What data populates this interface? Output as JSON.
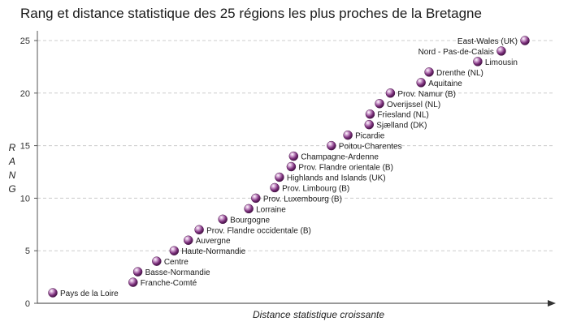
{
  "chart_data": {
    "type": "scatter",
    "title": "Rang et distance statistique des 25 régions les plus proches de la Bretagne",
    "xlabel": "Distance statistique croissante",
    "ylabel": "RANG",
    "ylim": [
      0,
      26
    ],
    "yticks": [
      0,
      5,
      10,
      15,
      20,
      25
    ],
    "grid": true,
    "marker_color": "#6b2a6b",
    "points": [
      {
        "rank": 1,
        "name": "Pays de la Loire",
        "x": 0.0
      },
      {
        "rank": 2,
        "name": "Franche-Comté",
        "x": 0.17
      },
      {
        "rank": 3,
        "name": "Basse-Normandie",
        "x": 0.18
      },
      {
        "rank": 4,
        "name": "Centre",
        "x": 0.22
      },
      {
        "rank": 5,
        "name": "Haute-Normandie",
        "x": 0.257
      },
      {
        "rank": 6,
        "name": "Auvergne",
        "x": 0.287
      },
      {
        "rank": 7,
        "name": "Prov. Flandre occidentale (B)",
        "x": 0.31
      },
      {
        "rank": 8,
        "name": "Bourgogne",
        "x": 0.36
      },
      {
        "rank": 9,
        "name": "Lorraine",
        "x": 0.415
      },
      {
        "rank": 10,
        "name": "Prov. Luxembourg (B)",
        "x": 0.43
      },
      {
        "rank": 11,
        "name": "Prov. Limbourg (B)",
        "x": 0.47
      },
      {
        "rank": 12,
        "name": "Highlands and Islands (UK)",
        "x": 0.48
      },
      {
        "rank": 13,
        "name": "Prov. Flandre orientale (B)",
        "x": 0.505
      },
      {
        "rank": 14,
        "name": "Champagne-Ardenne",
        "x": 0.51
      },
      {
        "rank": 15,
        "name": "Poitou-Charentes",
        "x": 0.59
      },
      {
        "rank": 16,
        "name": "Picardie",
        "x": 0.625
      },
      {
        "rank": 17,
        "name": "Sjælland (DK)",
        "x": 0.67
      },
      {
        "rank": 18,
        "name": "Friesland (NL)",
        "x": 0.672
      },
      {
        "rank": 19,
        "name": "Overijssel (NL)",
        "x": 0.692
      },
      {
        "rank": 20,
        "name": "Prov. Namur (B)",
        "x": 0.715
      },
      {
        "rank": 21,
        "name": "Aquitaine",
        "x": 0.78
      },
      {
        "rank": 22,
        "name": "Drenthe (NL)",
        "x": 0.797
      },
      {
        "rank": 23,
        "name": "Limousin",
        "x": 0.9
      },
      {
        "rank": 24,
        "name": "Nord - Pas-de-Calais",
        "x": 0.95
      },
      {
        "rank": 25,
        "name": "East-Wales (UK)",
        "x": 1.0
      }
    ]
  }
}
